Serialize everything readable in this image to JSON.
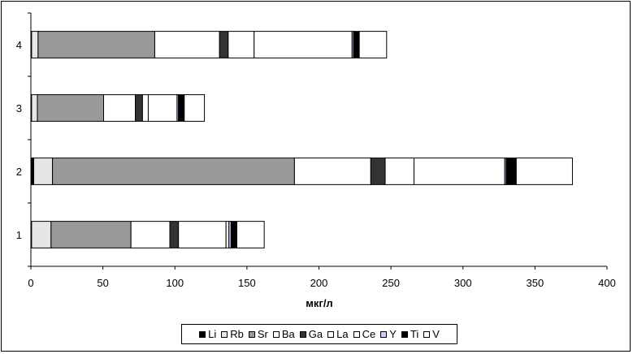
{
  "chart_data": {
    "type": "bar",
    "orientation": "horizontal",
    "stacked": true,
    "title": "",
    "xlabel": "мкг/л",
    "ylabel": "",
    "xlim": [
      0,
      400
    ],
    "x_ticks": [
      "0",
      "50",
      "100",
      "150",
      "200",
      "250",
      "300",
      "350",
      "400"
    ],
    "categories": [
      "1",
      "2",
      "3",
      "4"
    ],
    "series": [
      {
        "name": "Li",
        "color": "#000000",
        "values": [
          0.5,
          2,
          0.5,
          0.5
        ]
      },
      {
        "name": "Rb",
        "color": "#e6e6e6",
        "values": [
          13.5,
          13,
          4,
          4.5
        ]
      },
      {
        "name": "Sr",
        "color": "#999999",
        "values": [
          55.5,
          168,
          46,
          81
        ]
      },
      {
        "name": "Ba",
        "color": "#ffffff",
        "values": [
          27,
          53,
          22,
          45
        ]
      },
      {
        "name": "Ga",
        "color": "#333333",
        "values": [
          6,
          10,
          5,
          6
        ]
      },
      {
        "name": "La",
        "color": "#ffffff",
        "values": [
          33,
          20,
          4,
          18
        ]
      },
      {
        "name": "Ce",
        "color": "#ffffff",
        "values": [
          2,
          63,
          20,
          68
        ]
      },
      {
        "name": "Y",
        "color": "#ccccff",
        "values": [
          1.5,
          1,
          1,
          1
        ]
      },
      {
        "name": "Ti",
        "color": "#000000",
        "values": [
          4,
          7,
          4,
          4
        ]
      },
      {
        "name": "V",
        "color": "#ffffff",
        "values": [
          19,
          39,
          14,
          19
        ]
      }
    ],
    "grid": false,
    "legend_position": "bottom"
  }
}
